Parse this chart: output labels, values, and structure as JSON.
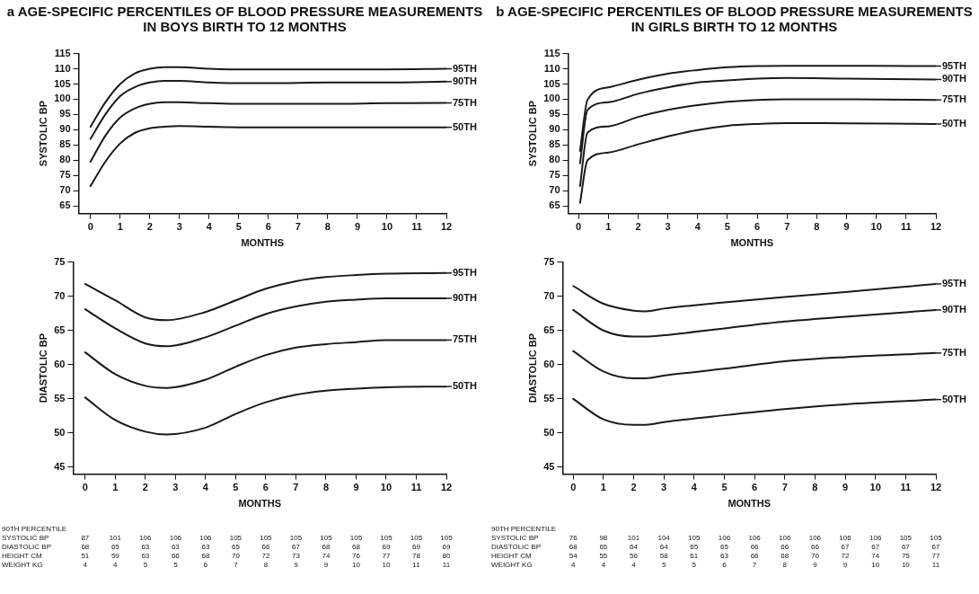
{
  "chart_data": [
    {
      "type": "line",
      "legend": "right",
      "title": "a AGE-SPECIFIC PERCENTILES OF BLOOD PRESSURE MEASUREMENTS IN BOYS BIRTH TO 12 MONTHS",
      "xlabel": "MONTHS",
      "ylabel": "SYSTOLIC BP",
      "xlim": [
        -0.4,
        12
      ],
      "xticks": [
        0,
        1,
        2,
        3,
        4,
        5,
        6,
        7,
        8,
        9,
        10,
        11,
        12
      ],
      "ylim": [
        62.5,
        115
      ],
      "yticks": [
        65,
        70,
        75,
        80,
        85,
        90,
        95,
        100,
        105,
        110,
        115
      ],
      "x": [
        0,
        0.5,
        1,
        1.5,
        2,
        2.5,
        3,
        4,
        5,
        6,
        8,
        10,
        12
      ],
      "series": [
        {
          "name": "95TH",
          "color": "#1a1a1a",
          "values": [
            91,
            99,
            105,
            108.5,
            110,
            110.5,
            110.5,
            110,
            109.8,
            109.8,
            109.8,
            109.8,
            110
          ]
        },
        {
          "name": "90TH",
          "color": "#1a1a1a",
          "values": [
            87,
            95,
            101,
            104,
            105.5,
            106,
            106,
            105.5,
            105.3,
            105.3,
            105.5,
            105.5,
            105.8
          ]
        },
        {
          "name": "75TH",
          "color": "#1a1a1a",
          "values": [
            79.5,
            88,
            94,
            97,
            98.5,
            99,
            99,
            98.7,
            98.5,
            98.5,
            98.5,
            98.7,
            98.8
          ]
        },
        {
          "name": "50TH",
          "color": "#1a1a1a",
          "values": [
            71.5,
            79.5,
            85.5,
            89,
            90.5,
            91,
            91.2,
            91,
            90.8,
            90.8,
            90.8,
            90.8,
            90.8
          ]
        }
      ]
    },
    {
      "type": "line",
      "legend": "right",
      "title": "b AGE-SPECIFIC PERCENTILES OF BLOOD PRESSURE MEASUREMENTS IN GIRLS BIRTH TO 12 MONTHS",
      "xlabel": "MONTHS",
      "ylabel": "SYSTOLIC BP",
      "xlim": [
        -0.35,
        12
      ],
      "xticks": [
        0,
        1,
        2,
        3,
        4,
        5,
        6,
        7,
        8,
        9,
        10,
        11,
        12
      ],
      "ylim": [
        62.5,
        115
      ],
      "yticks": [
        65,
        70,
        75,
        80,
        85,
        90,
        95,
        100,
        105,
        110,
        115
      ],
      "x": [
        0.05,
        0.3,
        1,
        2,
        3,
        4,
        5,
        6,
        7,
        9,
        12
      ],
      "series": [
        {
          "name": "95TH",
          "color": "#1a1a1a",
          "values": [
            83,
            99.8,
            103.9,
            106.4,
            108.4,
            109.6,
            110.5,
            110.9,
            111,
            111,
            110.9
          ]
        },
        {
          "name": "90TH",
          "color": "#1a1a1a",
          "values": [
            79,
            96.5,
            99,
            101.8,
            103.9,
            105.5,
            106.2,
            106.8,
            107,
            106.8,
            106.5
          ]
        },
        {
          "name": "75TH",
          "color": "#1a1a1a",
          "values": [
            71.5,
            89.1,
            91.1,
            94.2,
            96.5,
            98.1,
            99.2,
            99.8,
            100,
            100,
            99.8
          ]
        },
        {
          "name": "50TH",
          "color": "#1a1a1a",
          "values": [
            66,
            80,
            82.5,
            85.2,
            87.8,
            89.9,
            91.3,
            91.9,
            92.2,
            92.1,
            91.9
          ]
        }
      ]
    },
    {
      "type": "line",
      "legend": "right",
      "xlabel": "MONTHS",
      "ylabel": "DIASTOLIC BP",
      "xlim": [
        -0.4,
        12
      ],
      "xticks": [
        0,
        1,
        2,
        3,
        4,
        5,
        6,
        7,
        8,
        9,
        10,
        11,
        12
      ],
      "ylim": [
        44,
        75
      ],
      "yticks": [
        45,
        50,
        55,
        60,
        65,
        70,
        75
      ],
      "x": [
        0,
        1,
        2,
        2.7,
        4,
        5,
        6,
        7,
        8,
        9,
        10,
        12
      ],
      "series": [
        {
          "name": "95TH",
          "color": "#1a1a1a",
          "values": [
            71.8,
            69.4,
            66.9,
            66.5,
            67.7,
            69.4,
            71.1,
            72.2,
            72.8,
            73.1,
            73.3,
            73.4
          ]
        },
        {
          "name": "90TH",
          "color": "#1a1a1a",
          "values": [
            68.1,
            65.3,
            63.1,
            62.7,
            64,
            65.7,
            67.4,
            68.5,
            69.2,
            69.5,
            69.7,
            69.7
          ]
        },
        {
          "name": "75TH",
          "color": "#1a1a1a",
          "values": [
            61.8,
            58.6,
            56.9,
            56.6,
            57.8,
            59.7,
            61.4,
            62.5,
            63,
            63.3,
            63.6,
            63.6
          ]
        },
        {
          "name": "50TH",
          "color": "#1a1a1a",
          "values": [
            55.2,
            51.9,
            50.2,
            49.8,
            50.8,
            52.8,
            54.5,
            55.6,
            56.2,
            56.5,
            56.7,
            56.8
          ]
        }
      ],
      "annotations": [
        "90TH PERCENTILE",
        "SYSTOLIC BP 87 101 106 106 106 105 105 105 105 105 105 105 105",
        "DIASTOLIC BP 68 65 63 63 63 65 66 67 68 68 69 69 69",
        "HEIGHT CM 51 59 63 66 68 70 72 73 74 76 77 78 80",
        "WEIGHT KG 4 4 5 5 6 7 8 9 9 10 10 11 11"
      ]
    },
    {
      "type": "line",
      "legend": "right",
      "xlabel": "MONTHS",
      "ylabel": "DIASTOLIC BP",
      "xlim": [
        -0.35,
        12
      ],
      "xticks": [
        0,
        1,
        2,
        3,
        4,
        5,
        6,
        7,
        8,
        9,
        10,
        11,
        12
      ],
      "ylim": [
        44,
        75
      ],
      "yticks": [
        45,
        50,
        55,
        60,
        65,
        70,
        75
      ],
      "x": [
        0,
        1,
        2,
        2.4,
        3,
        5,
        7,
        9,
        12
      ],
      "series": [
        {
          "name": "95TH",
          "color": "#1a1a1a",
          "values": [
            71.5,
            68.9,
            67.9,
            67.8,
            68.2,
            69.1,
            69.9,
            70.6,
            71.8
          ]
        },
        {
          "name": "90TH",
          "color": "#1a1a1a",
          "values": [
            68,
            65,
            64.1,
            64.1,
            64.3,
            65.3,
            66.3,
            67,
            68
          ]
        },
        {
          "name": "75TH",
          "color": "#1a1a1a",
          "values": [
            62,
            59,
            58,
            58,
            58.4,
            59.4,
            60.5,
            61.1,
            61.7
          ]
        },
        {
          "name": "50TH",
          "color": "#1a1a1a",
          "values": [
            55,
            52,
            51.2,
            51.2,
            51.6,
            52.6,
            53.5,
            54.2,
            54.9
          ]
        }
      ],
      "annotations": [
        "90TH PERCENTILE",
        "SYSTOLIC BP 76 98 101 104 105 106 106 106 106 106 106 105 105",
        "DIASTOLIC BP 68 65 64 64 65 65 66 66 66 67 67 67 67",
        "HEIGHT CM 54 55 56 58 61 63 66 68 70 72 74 75 77",
        "WEIGHT KG 4 4 4 5 5 6 7 8 9 9 10 10 11"
      ]
    }
  ]
}
